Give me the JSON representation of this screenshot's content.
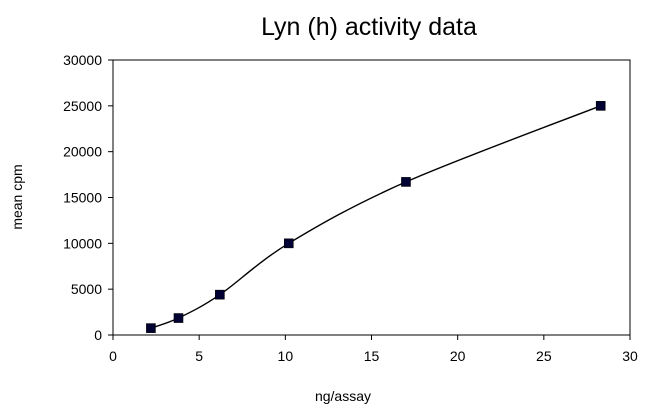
{
  "chart_data": {
    "type": "scatter",
    "title": "Lyn (h) activity data",
    "xlabel": "ng/assay",
    "ylabel": "mean cpm",
    "xlim": [
      0,
      30
    ],
    "ylim": [
      0,
      30000
    ],
    "x_ticks": [
      0,
      5,
      10,
      15,
      20,
      25,
      30
    ],
    "y_ticks": [
      0,
      5000,
      10000,
      15000,
      20000,
      25000,
      30000
    ],
    "grid": false,
    "legend": "none",
    "series": [
      {
        "x": [
          2.2,
          3.8,
          6.2,
          10.2,
          17.0,
          28.3
        ],
        "y": [
          750,
          1850,
          4400,
          10000,
          16700,
          25000
        ],
        "marker": "square",
        "line": "smooth",
        "color": "#000033",
        "line_color": "#000000"
      }
    ]
  }
}
